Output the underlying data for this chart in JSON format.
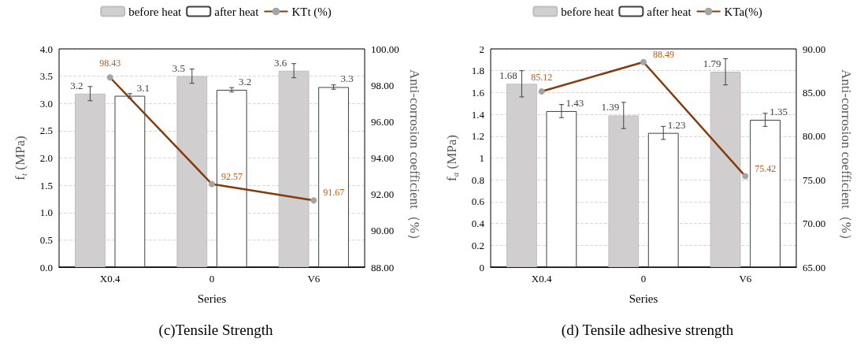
{
  "chart_data": [
    {
      "type": "bar",
      "title": "(c)Tensile Strength",
      "xlabel": "Series",
      "ylabel": "f$_{t}$ (MPa)",
      "y2label": "Anti-corrosion coefficient（%）",
      "categories": [
        "X0.4",
        "0",
        "V6"
      ],
      "series": [
        {
          "name": "before heat",
          "color": "#d0cecf",
          "values": [
            3.18,
            3.5,
            3.6
          ],
          "value_labels": [
            "3.2",
            "3.5",
            "3.6"
          ],
          "errors": [
            0.13,
            0.13,
            0.13
          ]
        },
        {
          "name": "after heat",
          "color": "#ffffff",
          "values": [
            3.14,
            3.25,
            3.3
          ],
          "value_labels": [
            "3.1",
            "3.2",
            "3.3"
          ],
          "errors": [
            0.04,
            0.04,
            0.04
          ]
        },
        {
          "name": "KTt (%)",
          "type": "line",
          "axis": "y2",
          "color": "#843c0c",
          "values": [
            98.43,
            92.57,
            91.67
          ],
          "value_labels": [
            "98.43",
            "92.57",
            "91.67"
          ]
        }
      ],
      "ylim": [
        0,
        4
      ],
      "yticks": [
        {
          "value": 0,
          "label": "0.0"
        },
        {
          "value": 0.5,
          "label": "0.5"
        },
        {
          "value": 1,
          "label": "1.0"
        },
        {
          "value": 1.5,
          "label": "1.5"
        },
        {
          "value": 2,
          "label": "2.0"
        },
        {
          "value": 2.5,
          "label": "2.5"
        },
        {
          "value": 3,
          "label": "3.0"
        },
        {
          "value": 3.5,
          "label": "3.5"
        },
        {
          "value": 4,
          "label": "4.0"
        }
      ],
      "y2lim": [
        88,
        100
      ],
      "y2ticks": [
        {
          "value": 88,
          "label": "88.00"
        },
        {
          "value": 90,
          "label": "90.00"
        },
        {
          "value": 92,
          "label": "92.00"
        },
        {
          "value": 94,
          "label": "94.00"
        },
        {
          "value": 96,
          "label": "96.00"
        },
        {
          "value": 98,
          "label": "98.00"
        },
        {
          "value": 100,
          "label": "100.00"
        }
      ],
      "grid": "y",
      "legend": "top",
      "marker": "circle"
    },
    {
      "type": "bar",
      "title": "(d) Tensile adhesive strength",
      "xlabel": "Series",
      "ylabel": "f$_{a}$ (MPa)",
      "y2label": "Anti-corrosion coefficient（%）",
      "categories": [
        "X0.4",
        "0",
        "V6"
      ],
      "series": [
        {
          "name": "before heat",
          "color": "#d0cecf",
          "values": [
            1.68,
            1.39,
            1.79
          ],
          "errors": [
            0.12,
            0.12,
            0.12
          ]
        },
        {
          "name": "after heat",
          "color": "#ffffff",
          "values": [
            1.43,
            1.23,
            1.35
          ],
          "errors": [
            0.06,
            0.06,
            0.06
          ]
        },
        {
          "name": "KTa(%)",
          "type": "line",
          "axis": "y2",
          "color": "#843c0c",
          "values": [
            85.12,
            88.49,
            75.42
          ]
        }
      ],
      "ylim": [
        0,
        2
      ],
      "yticks": [
        0,
        0.2,
        0.4,
        0.6,
        0.8,
        1,
        1.2,
        1.4,
        1.6,
        1.8,
        2
      ],
      "y2lim": [
        65,
        90
      ],
      "y2ticks": [
        {
          "value": 65,
          "label": "65.00"
        },
        {
          "value": 70,
          "label": "70.00"
        },
        {
          "value": 75,
          "label": "75.00"
        },
        {
          "value": 80,
          "label": "80.00"
        },
        {
          "value": 85,
          "label": "85.00"
        },
        {
          "value": 90,
          "label": "90.00"
        }
      ],
      "grid": "y",
      "legend": "top",
      "marker": "circle",
      "data_labels": true
    }
  ]
}
